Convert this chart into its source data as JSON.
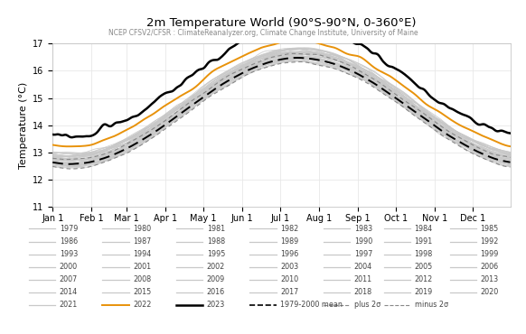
{
  "title": "2m Temperature World (90°S-90°N, 0-360°E)",
  "subtitle": "NCEP CFSV2/CFSR : ClimateReanalyzer.org, Climate Change Institute, University of Maine",
  "ylabel": "Temperature (°C)",
  "ylim": [
    11,
    17
  ],
  "yticks": [
    11,
    12,
    13,
    14,
    15,
    16,
    17
  ],
  "month_labels": [
    "Jan 1",
    "Feb 1",
    "Mar 1",
    "Apr 1",
    "May 1",
    "Jun 1",
    "Jul 1",
    "Aug 1",
    "Sep 1",
    "Oct 1",
    "Nov 1",
    "Dec 1"
  ],
  "month_days": [
    1,
    32,
    60,
    91,
    121,
    152,
    182,
    213,
    244,
    274,
    305,
    335
  ],
  "gray_years": [
    1979,
    1980,
    1981,
    1982,
    1983,
    1984,
    1985,
    1986,
    1987,
    1988,
    1989,
    1990,
    1991,
    1992,
    1993,
    1994,
    1995,
    1996,
    1997,
    1998,
    1999,
    2000,
    2001,
    2002,
    2003,
    2004,
    2005,
    2006,
    2007,
    2008,
    2009,
    2010,
    2011,
    2012,
    2013,
    2014,
    2015,
    2016,
    2017,
    2018,
    2019,
    2020,
    2021
  ],
  "legend_col1": [
    "1979",
    "1986",
    "1993",
    "2000",
    "2007",
    "2014",
    "2021"
  ],
  "legend_col2": [
    "1980",
    "1987",
    "1994",
    "2001",
    "2008",
    "2015",
    "2022"
  ],
  "legend_col3": [
    "1981",
    "1988",
    "1995",
    "2002",
    "2009",
    "2016",
    "2023"
  ],
  "legend_col4": [
    "1982",
    "1989",
    "1996",
    "2003",
    "2010",
    "2017",
    "1979-2000 mean"
  ],
  "legend_col5": [
    "1983",
    "1990",
    "1997",
    "2004",
    "2011",
    "2018",
    "plus 2σ"
  ],
  "legend_col6": [
    "1984",
    "1991",
    "1998",
    "2005",
    "2012",
    "2019",
    "minus 2σ"
  ],
  "legend_col7": [
    "1985",
    "1992",
    "1999",
    "2006",
    "2013",
    "2020",
    ""
  ],
  "background_color": "#ffffff",
  "gray_color": "#c8c8c8",
  "orange_color": "#e8920a",
  "black_color": "#000000",
  "dashed_color": "#666666",
  "text_color": "#444444"
}
